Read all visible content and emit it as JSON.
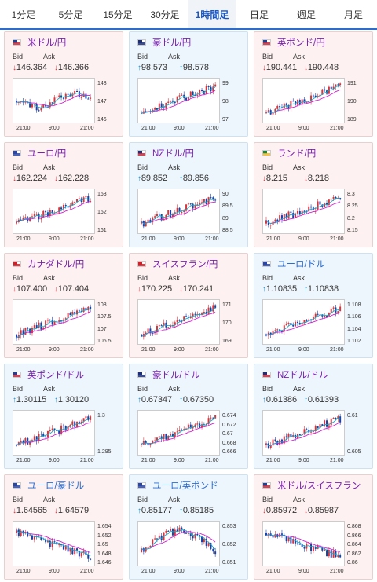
{
  "tabs": [
    {
      "label": "1分足",
      "active": false
    },
    {
      "label": "5分足",
      "active": false
    },
    {
      "label": "15分足",
      "active": false
    },
    {
      "label": "30分足",
      "active": false
    },
    {
      "label": "1時間足",
      "active": true
    },
    {
      "label": "日足",
      "active": false
    },
    {
      "label": "週足",
      "active": false
    },
    {
      "label": "月足",
      "active": false
    }
  ],
  "labels": {
    "bid": "Bid",
    "ask": "Ask"
  },
  "colors": {
    "down_bg": "#fdf1f1",
    "up_bg": "#eef6fd",
    "down_arrow": "#d8343c",
    "up_arrow": "#1b8fd2",
    "tab_active": "#1a57c4",
    "ma_line": "#d020d0",
    "signal_line": "#19a8c8",
    "candle_up": "#d8343c",
    "candle_down": "#1a3fa8"
  },
  "cards": [
    {
      "name": "米ドル/円",
      "flag": "us-jp",
      "direction": "down",
      "bid": "146.364",
      "ask": "146.366",
      "yticks": [
        "148",
        "147",
        "146"
      ],
      "xticks": [
        "21:00",
        "9:00",
        "21:00"
      ],
      "trend": "flat",
      "name_color": "purple"
    },
    {
      "name": "豪ドル/円",
      "flag": "au-jp",
      "direction": "up",
      "bid": "98.573",
      "ask": "98.578",
      "yticks": [
        "99",
        "98",
        "97"
      ],
      "xticks": [
        "21:00",
        "9:00",
        "21:00"
      ],
      "trend": "rise",
      "name_color": "purple"
    },
    {
      "name": "英ポンド/円",
      "flag": "gb-jp",
      "direction": "down",
      "bid": "190.441",
      "ask": "190.448",
      "yticks": [
        "191",
        "190",
        "189"
      ],
      "xticks": [
        "21:00",
        "9:00",
        "21:00"
      ],
      "trend": "rise",
      "name_color": "purple"
    },
    {
      "name": "ユーロ/円",
      "flag": "eu-jp",
      "direction": "down",
      "bid": "162.224",
      "ask": "162.228",
      "yticks": [
        "163",
        "162",
        "161"
      ],
      "xticks": [
        "21:00",
        "9:00",
        "21:00"
      ],
      "trend": "rise",
      "name_color": "purple"
    },
    {
      "name": "NZドル/円",
      "flag": "nz-jp",
      "direction": "up",
      "bid": "89.852",
      "ask": "89.856",
      "yticks": [
        "90",
        "89.5",
        "89",
        "88.5"
      ],
      "xticks": [
        "21:00",
        "9:00",
        "21:00"
      ],
      "trend": "rise",
      "name_color": "purple"
    },
    {
      "name": "ランド/円",
      "flag": "za-jp",
      "direction": "down",
      "bid": "8.215",
      "ask": "8.218",
      "yticks": [
        "8.3",
        "8.25",
        "8.2",
        "8.15"
      ],
      "xticks": [
        "21:00",
        "9:00",
        "21:00"
      ],
      "trend": "rise",
      "name_color": "purple"
    },
    {
      "name": "カナダドル/円",
      "flag": "ca-jp",
      "direction": "down",
      "bid": "107.400",
      "ask": "107.404",
      "yticks": [
        "108",
        "107.5",
        "107",
        "106.5"
      ],
      "xticks": [
        "21:00",
        "9:00",
        "21:00"
      ],
      "trend": "rise",
      "name_color": "purple"
    },
    {
      "name": "スイスフラン/円",
      "flag": "ch-jp",
      "direction": "down",
      "bid": "170.225",
      "ask": "170.241",
      "yticks": [
        "171",
        "170",
        "169"
      ],
      "xticks": [
        "21:00",
        "9:00",
        "21:00"
      ],
      "trend": "rise",
      "name_color": "purple"
    },
    {
      "name": "ユーロ/ドル",
      "flag": "eu-us",
      "direction": "up",
      "bid": "1.10835",
      "ask": "1.10838",
      "yticks": [
        "1.108",
        "1.106",
        "1.104",
        "1.102"
      ],
      "xticks": [
        "21:00",
        "9:00",
        "21:00"
      ],
      "trend": "rise",
      "name_color": "blue"
    },
    {
      "name": "英ポンド/ドル",
      "flag": "gb-us",
      "direction": "up",
      "bid": "1.30115",
      "ask": "1.30120",
      "yticks": [
        "1.3",
        "1.295"
      ],
      "xticks": [
        "21:00",
        "9:00",
        "21:00"
      ],
      "trend": "rise",
      "name_color": "purple"
    },
    {
      "name": "豪ドル/ドル",
      "flag": "au-us",
      "direction": "up",
      "bid": "0.67347",
      "ask": "0.67350",
      "yticks": [
        "0.674",
        "0.672",
        "0.67",
        "0.668",
        "0.666"
      ],
      "xticks": [
        "21:00",
        "9:00",
        "21:00"
      ],
      "trend": "rise",
      "name_color": "purple"
    },
    {
      "name": "NZドル/ドル",
      "flag": "nz-us",
      "direction": "up",
      "bid": "0.61386",
      "ask": "0.61393",
      "yticks": [
        "0.61",
        "0.605"
      ],
      "xticks": [
        "21:00",
        "9:00",
        "21:00"
      ],
      "trend": "rise",
      "name_color": "purple"
    },
    {
      "name": "ユーロ/豪ドル",
      "flag": "eu-au",
      "direction": "down",
      "bid": "1.64565",
      "ask": "1.64579",
      "yticks": [
        "1.654",
        "1.652",
        "1.65",
        "1.648",
        "1.646"
      ],
      "xticks": [
        "21:00",
        "9:00",
        "21:00"
      ],
      "trend": "fall",
      "name_color": "blue"
    },
    {
      "name": "ユーロ/英ポンド",
      "flag": "eu-gb",
      "direction": "up",
      "bid": "0.85177",
      "ask": "0.85185",
      "yticks": [
        "0.853",
        "0.852",
        "0.851"
      ],
      "xticks": [
        "21:00",
        "9:00",
        "21:00"
      ],
      "trend": "hump",
      "name_color": "blue"
    },
    {
      "name": "米ドル/スイスフラン",
      "flag": "us-ch",
      "direction": "down",
      "bid": "0.85972",
      "ask": "0.85987",
      "yticks": [
        "0.868",
        "0.866",
        "0.864",
        "0.862",
        "0.86"
      ],
      "xticks": [
        "21:00",
        "9:00",
        "21:00"
      ],
      "trend": "fall",
      "name_color": "purple"
    }
  ]
}
